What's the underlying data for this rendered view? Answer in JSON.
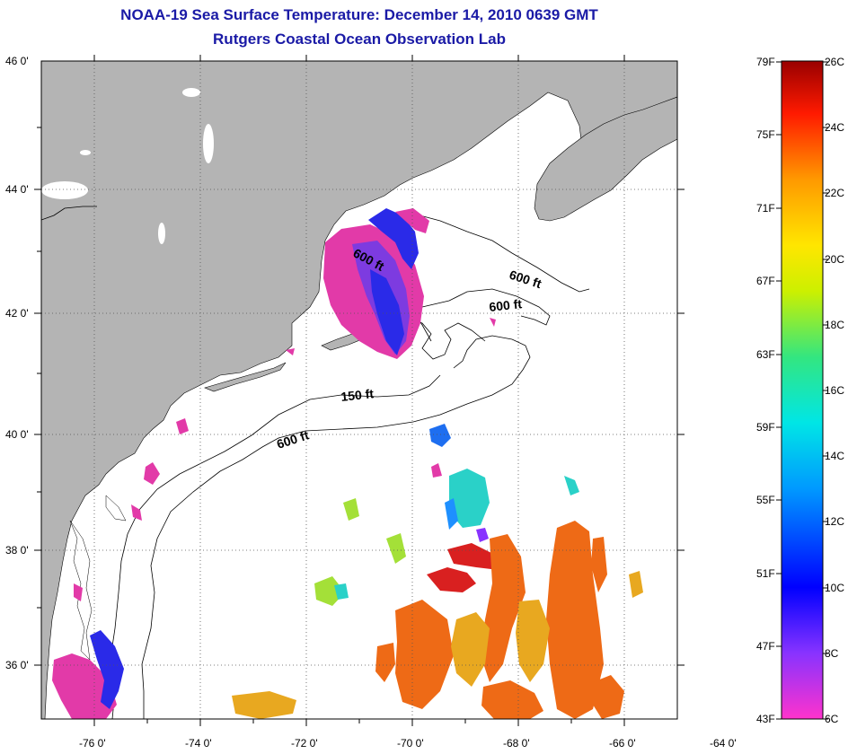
{
  "title": "NOAA-19 Sea Surface Temperature:  December 14, 2010 0639 GMT",
  "subtitle": "Rutgers Coastal Ocean Observation Lab",
  "lat_labels": [
    "46 0'",
    "44 0'",
    "42 0'",
    "40 0'",
    "38 0'",
    "36 0'"
  ],
  "lon_labels": [
    "-76 0'",
    "-74 0'",
    "-72 0'",
    "-70 0'",
    "-68 0'",
    "-66 0'",
    "-64 0'"
  ],
  "contours": [
    "600 ft",
    "600 ft",
    "600 ft",
    "150 ft",
    "600 ft"
  ],
  "colorbar": {
    "f_labels": [
      "79F",
      "75F",
      "71F",
      "67F",
      "63F",
      "59F",
      "55F",
      "51F",
      "47F",
      "43F"
    ],
    "c_labels": [
      "26C",
      "24C",
      "22C",
      "20C",
      "18C",
      "16C",
      "14C",
      "12C",
      "10C",
      "8C",
      "6C"
    ],
    "range_f": [
      43,
      79
    ],
    "range_c": [
      6,
      26
    ]
  },
  "colors": {
    "land": "#b4b4b4",
    "title": "#1a1aa6"
  }
}
